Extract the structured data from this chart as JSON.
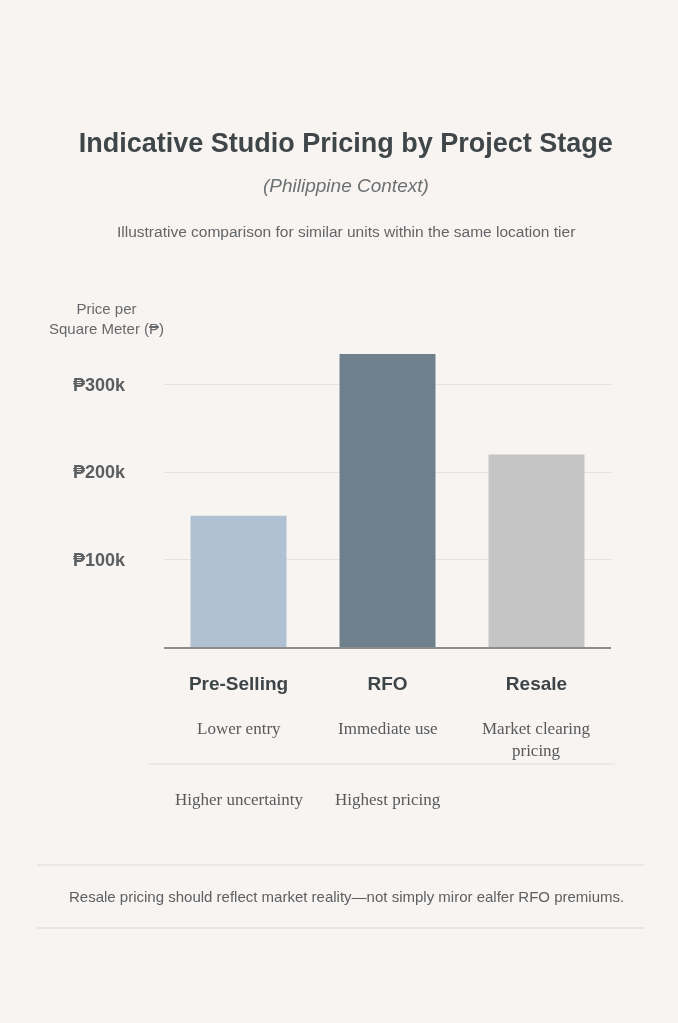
{
  "chart_data": {
    "type": "bar",
    "title": "Indicative Studio Pricing by Project Stage",
    "subtitle": "(Philippine Context)\nIllustrative comparison for similar units within the same location tier",
    "ylabel": "Price per\nSquare Meter (₱)",
    "categories": [
      "Pre-Selling",
      "RFO",
      "Resale"
    ],
    "values": [
      150000,
      335000,
      220000
    ],
    "colors": [
      "#b0c1d3",
      "#6f818d",
      "#c5c5c6"
    ],
    "ylim": [
      0,
      335000
    ],
    "yticks": [
      {
        "value": 100000,
        "label": "₱100k"
      },
      {
        "value": 200000,
        "label": "₱200k"
      },
      {
        "value": 300000,
        "label": "₱300k"
      }
    ],
    "grid": "y",
    "annotations": [
      "Lower entry",
      "Immediate use",
      "Market clearing\npricing",
      "Higher uncertainty",
      "Highest pricing",
      "Resale pricing should reflect market reality—not simply miror ealfer RFO premiums."
    ]
  }
}
